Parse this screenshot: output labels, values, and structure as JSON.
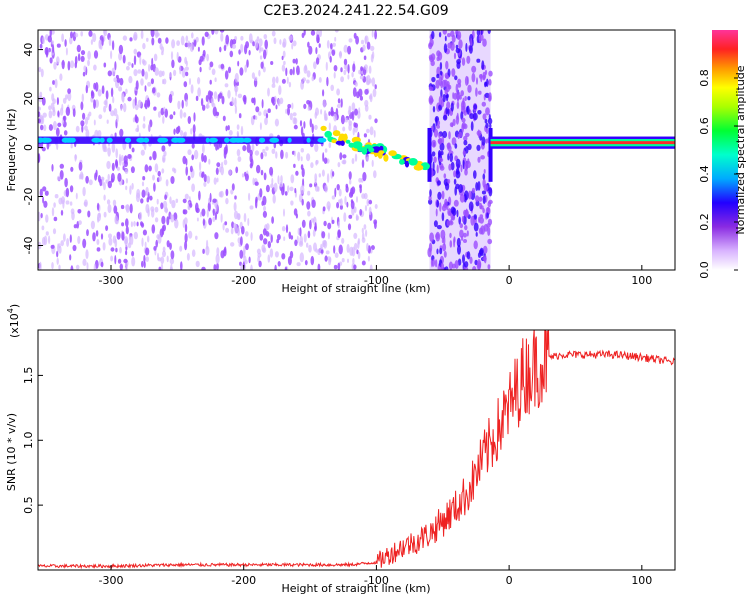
{
  "title": "C2E3.2024.241.22.54.G09",
  "chart_data": [
    {
      "type": "heatmap",
      "xlabel": "Height of straight line (km)",
      "ylabel": "Frequency (Hz)",
      "xlim": [
        -355,
        125
      ],
      "ylim": [
        -50,
        48
      ],
      "xticks": [
        -300,
        -200,
        -100,
        0,
        100
      ],
      "yticks": [
        -40,
        -20,
        0,
        20,
        40
      ],
      "colorbar": {
        "label": "Normalized spectral amplitude",
        "range": [
          0,
          1
        ],
        "ticks": [
          "0.0",
          "0.2",
          "0.4",
          "0.6",
          "0.8"
        ],
        "tick_values": [
          0.0,
          0.2,
          0.4,
          0.6,
          0.8
        ]
      },
      "colors": {
        "low": "#d6b8ff",
        "noise": "#9b4dff",
        "mid": "#3300ff",
        "high": "#00ff99",
        "peak": "#ff2b2b"
      },
      "features": [
        {
          "region": "noise",
          "x_range": [
            -355,
            -130
          ],
          "freq_band": [
            -50,
            48
          ],
          "amplitude": 0.1
        },
        {
          "region": "carrier",
          "x_range": [
            -355,
            -60
          ],
          "frequency": 3,
          "amplitude": 0.25
        },
        {
          "region": "carrier-descending",
          "x_range": [
            -140,
            -62
          ],
          "frequency_range": [
            6,
            -8
          ],
          "amplitude": 0.45
        },
        {
          "region": "broadband-burst",
          "x_range": [
            -60,
            -14
          ],
          "freq_band": [
            -50,
            48
          ],
          "amplitude": 0.15
        },
        {
          "region": "carrier-strong",
          "x_range": [
            -14,
            125
          ],
          "frequency": 2,
          "amplitude": 0.9
        }
      ]
    },
    {
      "type": "line",
      "xlabel": "Height of straight line (km)",
      "ylabel": "SNR (10 * v/v)",
      "scale_label": "(x10",
      "scale_exponent": "4",
      "xlim": [
        -355,
        125
      ],
      "ylim": [
        0,
        1.85
      ],
      "xticks": [
        -300,
        -200,
        -100,
        0,
        100
      ],
      "yticks": [
        0.5,
        1.0,
        1.5
      ],
      "ytick_labels": [
        "0.5",
        "1.0",
        "1.5"
      ],
      "series": [
        {
          "color": "#ee2222",
          "x": [
            -355,
            -300,
            -250,
            -200,
            -150,
            -120,
            -100,
            -90,
            -80,
            -70,
            -60,
            -50,
            -40,
            -30,
            -20,
            -10,
            0,
            10,
            20,
            30,
            40,
            60,
            80,
            100,
            125
          ],
          "y": [
            0.03,
            0.03,
            0.04,
            0.04,
            0.04,
            0.04,
            0.06,
            0.12,
            0.18,
            0.22,
            0.28,
            0.38,
            0.48,
            0.62,
            0.85,
            1.05,
            1.25,
            1.48,
            1.58,
            1.64,
            1.66,
            1.66,
            1.66,
            1.64,
            1.6
          ]
        }
      ]
    }
  ]
}
